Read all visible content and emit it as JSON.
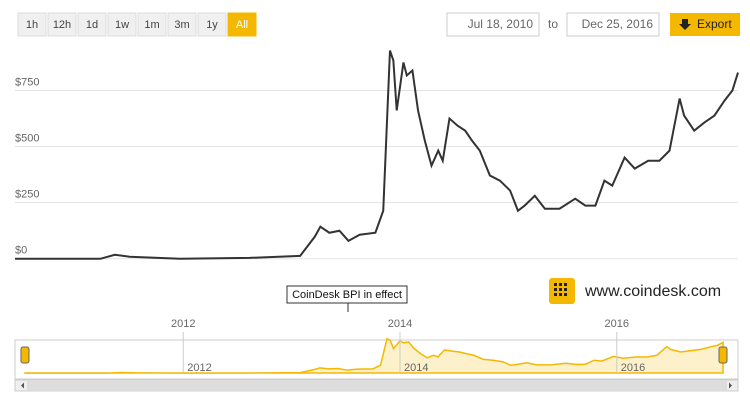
{
  "controls": {
    "ranges": [
      "1h",
      "12h",
      "1d",
      "1w",
      "1m",
      "3m",
      "1y",
      "All"
    ],
    "active_range": "All",
    "from": "Jul 18, 2010",
    "to_label": "to",
    "to": "Dec 25, 2016",
    "export": "Export"
  },
  "brand": "www.coindesk.com",
  "chart_data": {
    "type": "line",
    "annotation": "CoinDesk BPI in effect",
    "x": [
      2010.54,
      2011.3,
      2011.43,
      2011.56,
      2012.01,
      2012.63,
      2013.08,
      2013.21,
      2013.26,
      2013.34,
      2013.43,
      2013.51,
      2013.61,
      2013.75,
      2013.82,
      2013.88,
      2013.91,
      2013.94,
      2014.0,
      2014.03,
      2014.08,
      2014.13,
      2014.19,
      2014.25,
      2014.31,
      2014.35,
      2014.41,
      2014.48,
      2014.55,
      2014.61,
      2014.68,
      2014.77,
      2014.86,
      2014.95,
      2015.02,
      2015.08,
      2015.17,
      2015.26,
      2015.39,
      2015.53,
      2015.62,
      2015.71,
      2015.79,
      2015.86,
      2015.97,
      2016.06,
      2016.18,
      2016.28,
      2016.37,
      2016.46,
      2016.5,
      2016.59,
      2016.68,
      2016.77,
      2016.86,
      2016.93,
      2016.98
    ],
    "values": [
      0,
      0,
      18,
      9,
      0,
      4,
      13,
      98,
      143,
      116,
      125,
      80,
      107,
      116,
      214,
      928,
      884,
      661,
      875,
      817,
      839,
      661,
      527,
      415,
      482,
      437,
      625,
      594,
      571,
      527,
      482,
      371,
      348,
      304,
      214,
      237,
      281,
      223,
      223,
      268,
      237,
      237,
      348,
      326,
      451,
      402,
      437,
      437,
      482,
      714,
      638,
      571,
      607,
      638,
      705,
      750,
      830
    ],
    "color": "#333333",
    "navigator_color": "#f5b800",
    "xlim": [
      2010.54,
      2016.98
    ],
    "xticks": [
      2012,
      2014,
      2016
    ],
    "ylim": [
      -50,
      975
    ],
    "yticks": [
      {
        "value": 0,
        "label": "$0"
      },
      {
        "value": 250,
        "label": "$250"
      },
      {
        "value": 500,
        "label": "$500"
      },
      {
        "value": 750,
        "label": "$750"
      }
    ],
    "grid": true
  }
}
